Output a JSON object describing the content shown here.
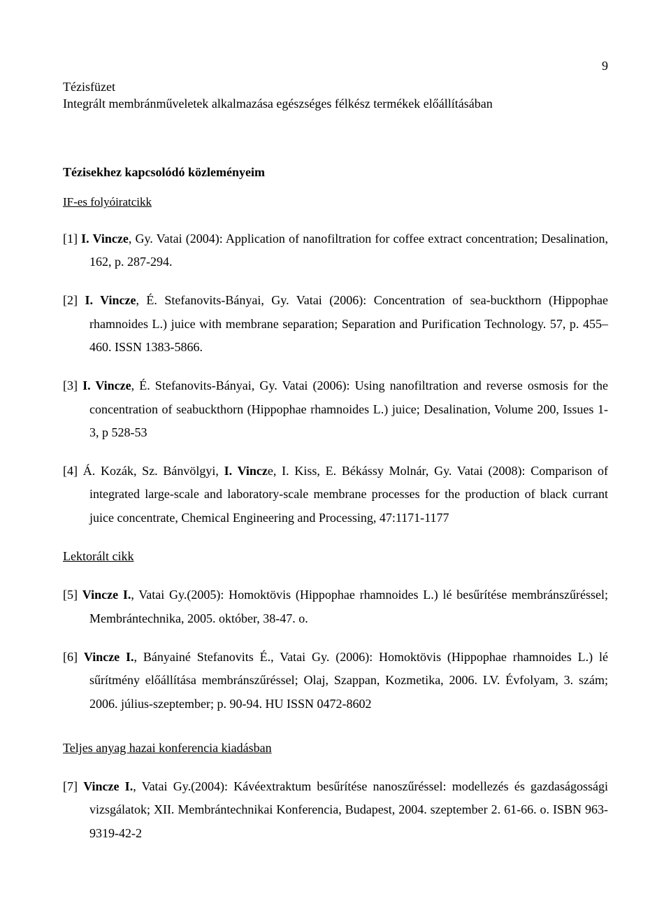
{
  "page": {
    "number": "9",
    "running_header_line1": "Tézisfüzet",
    "running_header_line2": "Integrált membránműveletek alkalmazása egészséges félkész termékek előállításában"
  },
  "sections": {
    "main_title": "Tézisekhez kapcsolódó közleményeim",
    "sub_if": "IF-es folyóiratcikk",
    "lektoralt": "Lektorált cikk",
    "teljes": "Teljes anyag hazai konferencia kiadásban"
  },
  "refs": {
    "r1": {
      "num": "[1]",
      "bold": "I. Vincze",
      "rest": ", Gy. Vatai (2004): Application of nanofiltration for coffee extract concentration; Desalination, 162, p. 287-294."
    },
    "r2": {
      "num": "[2]",
      "bold": "I. Vincze",
      "rest": ", É. Stefanovits-Bányai, Gy. Vatai (2006): Concentration of sea-buckthorn (Hippophae rhamnoides L.) juice with membrane separation; Separation and Purification Technology. 57, p. 455–460. ISSN 1383-5866."
    },
    "r3": {
      "num": "[3]",
      "bold": "I. Vincze",
      "rest": ", É. Stefanovits-Bányai, Gy. Vatai (2006): Using nanofiltration and reverse osmosis for the concentration of seabuckthorn (Hippophae rhamnoides L.) juice; Desalination, Volume 200, Issues 1-3, p 528-53"
    },
    "r4": {
      "num": "[4]",
      "pre": "Á. Kozák, Sz. Bánvölgyi, ",
      "bold": "I. Vincz",
      "rest": "e, I. Kiss, E. Békássy Molnár, Gy. Vatai (2008): Comparison of integrated large-scale and laboratory-scale membrane processes for the production of black currant juice concentrate, Chemical Engineering and Processing, 47:1171-1177"
    },
    "r5": {
      "num": "[5]",
      "bold": "Vincze I.",
      "rest": ", Vatai Gy.(2005): Homoktövis (Hippophae rhamnoides L.) lé besűrítése membránszűréssel; Membrántechnika, 2005. október, 38-47. o."
    },
    "r6": {
      "num": "[6]",
      "bold": "Vincze I.",
      "rest": ", Bányainé Stefanovits É., Vatai Gy. (2006): Homoktövis (Hippophae rhamnoides L.) lé sűrítmény előállítása membránszűréssel; Olaj, Szappan, Kozmetika, 2006. LV. Évfolyam, 3. szám; 2006. július-szeptember; p. 90-94. HU ISSN 0472-8602"
    },
    "r7": {
      "num": "[7]",
      "bold": "Vincze I.",
      "rest": ", Vatai Gy.(2004): Kávéextraktum besűrítése nanoszűréssel: modellezés és gazdaságossági vizsgálatok; XII. Membrántechnikai Konferencia, Budapest, 2004. szeptember 2. 61-66. o. ISBN 963-9319-42-2"
    }
  }
}
